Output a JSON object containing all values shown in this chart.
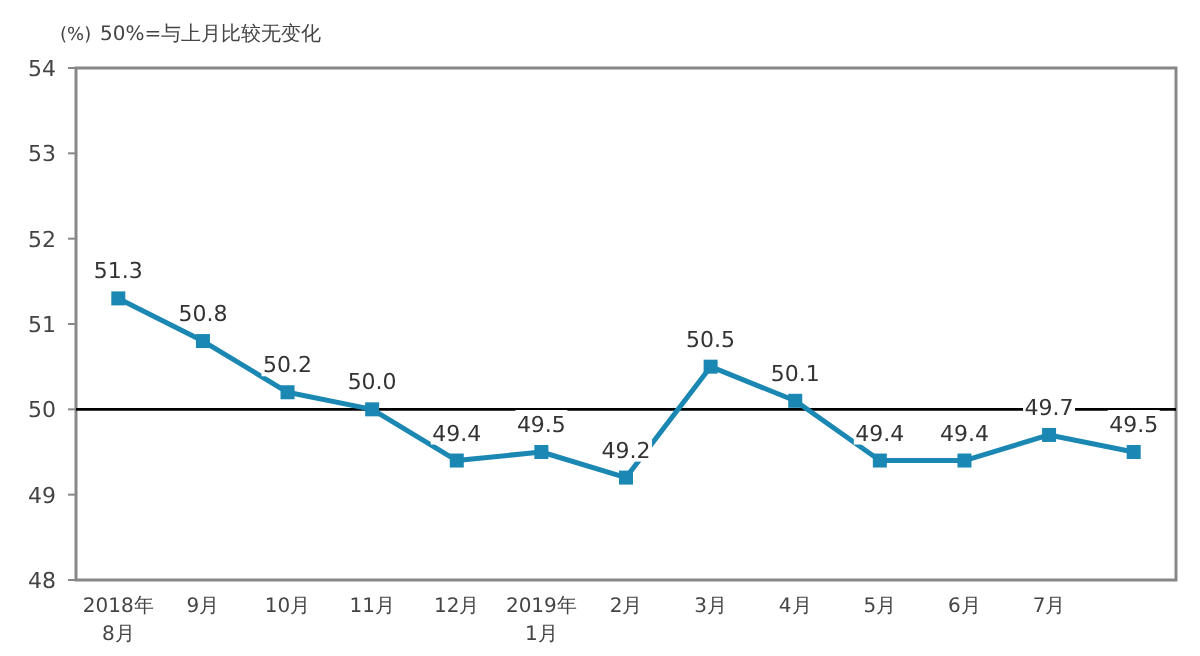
{
  "chart_data": {
    "type": "line",
    "ylabel": "(%)",
    "annotations": [
      "50%=与上月比较无变化"
    ],
    "categories": [
      "2018年\n8月",
      "9月",
      "10月",
      "11月",
      "12月",
      "2019年\n1月",
      "2月",
      "3月",
      "4月",
      "5月",
      "6月",
      "7月",
      null
    ],
    "series": [
      {
        "color": "#1b87b3",
        "values": [
          51.3,
          50.8,
          50.2,
          50.0,
          49.4,
          49.5,
          49.2,
          50.5,
          50.1,
          49.4,
          49.4,
          49.7,
          49.5
        ],
        "value_labels": [
          "51.3",
          "50.8",
          "50.2",
          "50.0",
          "49.4",
          "49.5",
          "49.2",
          "50.5",
          "50.1",
          "49.4",
          "49.4",
          "49.7",
          "49.5"
        ]
      }
    ],
    "ylim": [
      48,
      54
    ],
    "yticks": [
      48,
      49,
      50,
      51,
      52,
      53,
      54
    ],
    "ref_lines": [
      {
        "axis": "y",
        "value": 50,
        "color": "#000000"
      }
    ],
    "marker": "square",
    "grid": false
  }
}
